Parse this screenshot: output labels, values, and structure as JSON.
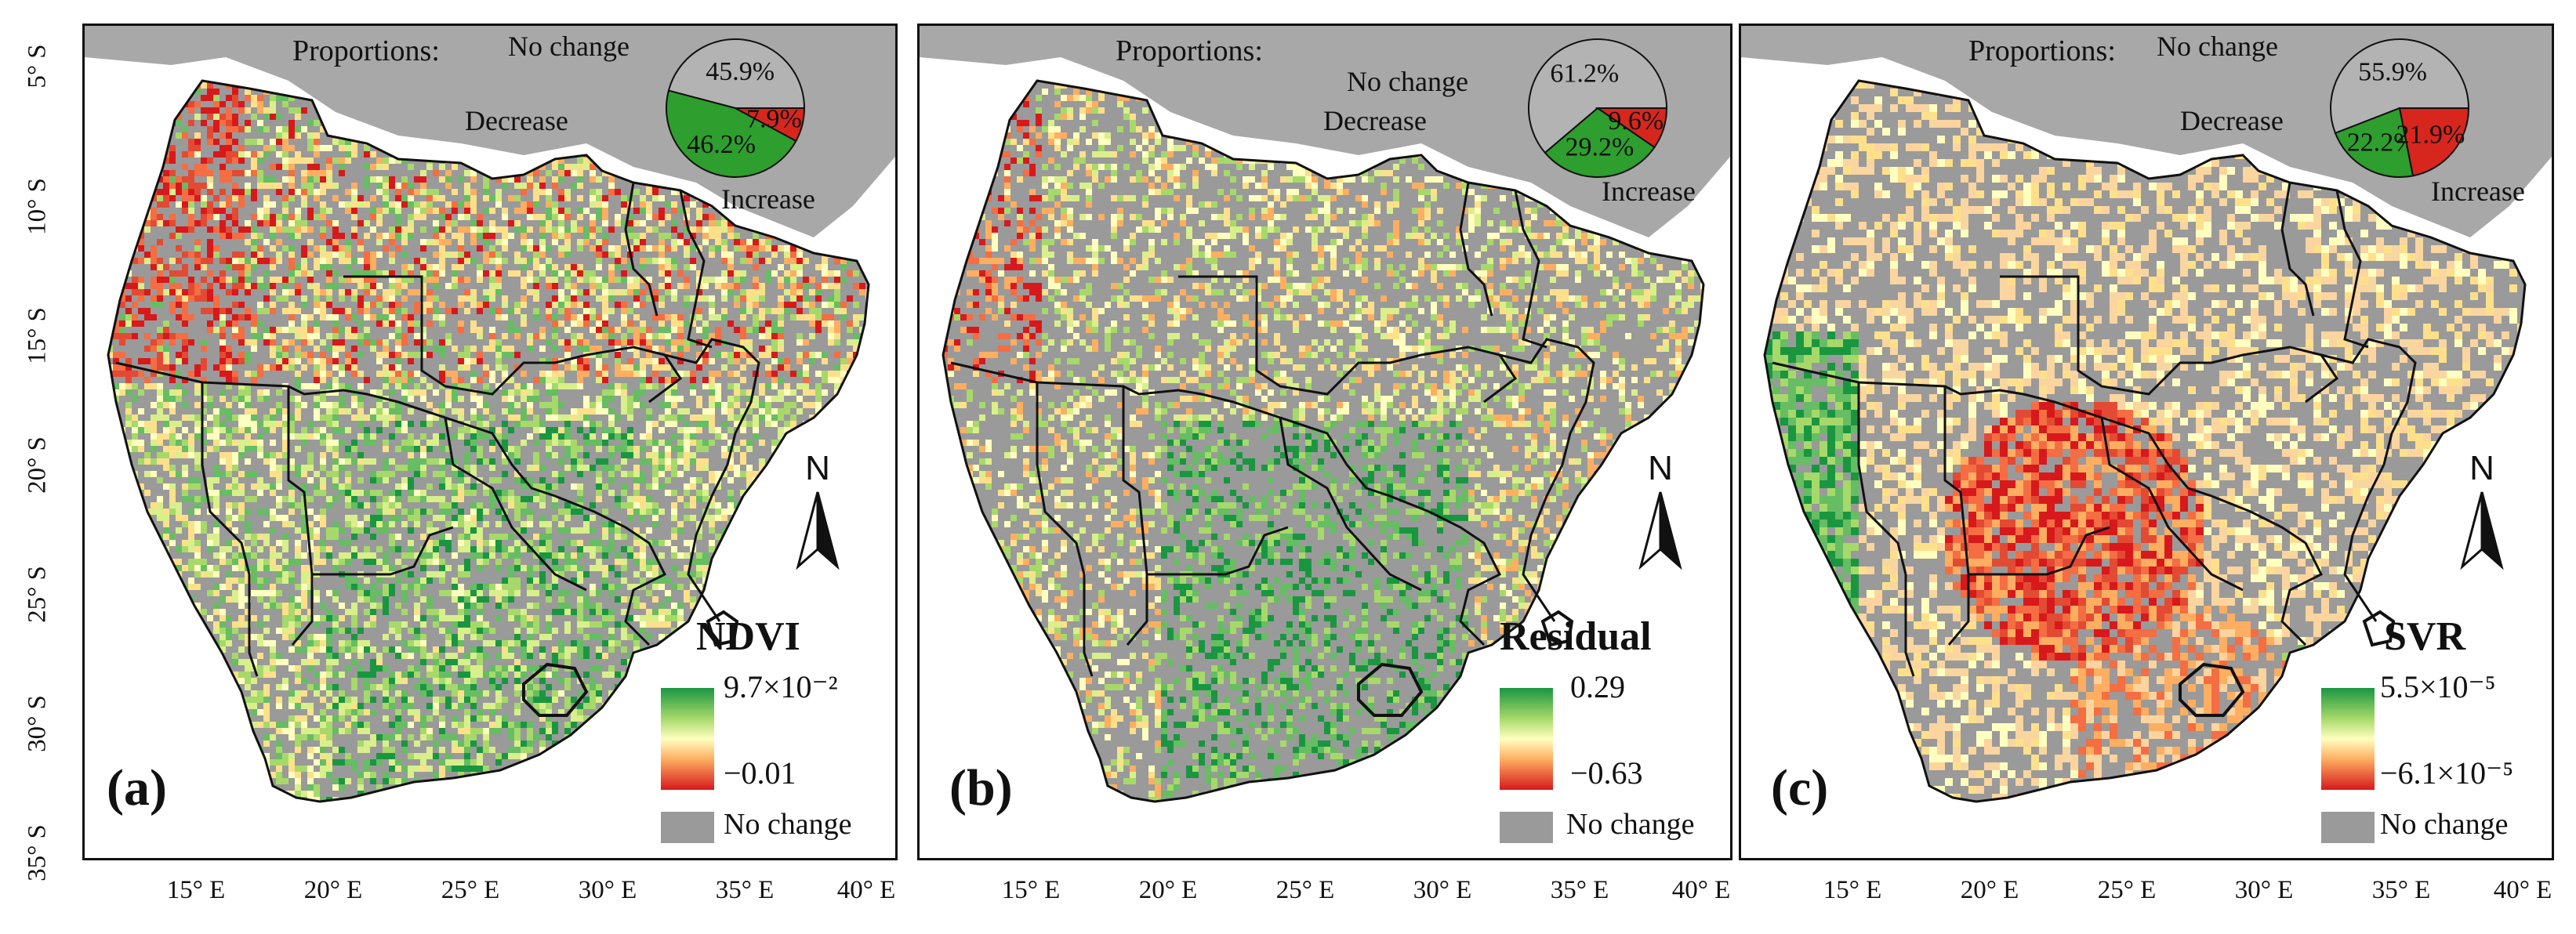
{
  "colors": {
    "land_nochange": "#9a9a9a",
    "sea_land_outside": "#a8a8a8",
    "increase": "#2e9e2e",
    "decrease": "#d7261e",
    "nochange_pie": "#b3b3b3",
    "border": "#111111"
  },
  "axes": {
    "lat_labels": [
      "5° S",
      "10° S",
      "15° S",
      "20° S",
      "25° S",
      "30° S",
      "35° S"
    ],
    "lon_labels": [
      "15° E",
      "20° E",
      "25° E",
      "30° E",
      "35° E",
      "40° E"
    ]
  },
  "common": {
    "proportions_label": "Proportions:",
    "no_change": "No change",
    "decrease": "Decrease",
    "increase": "Increase",
    "legend_nochange": "No change",
    "north": "N"
  },
  "panels": [
    {
      "letter": "(a)",
      "legend_title": "NDVI",
      "legend_max": "9.7×10⁻²",
      "legend_min": "−0.01",
      "pie": {
        "no_change": 45.9,
        "decrease": 7.9,
        "increase": 46.2,
        "no_change_label": "45.9%",
        "decrease_label": "7.9%",
        "increase_label": "46.2%"
      }
    },
    {
      "letter": "(b)",
      "legend_title": "Residual",
      "legend_max": "0.29",
      "legend_min": "−0.63",
      "pie": {
        "no_change": 61.2,
        "decrease": 9.6,
        "increase": 29.2,
        "no_change_label": "61.2%",
        "decrease_label": "9.6%",
        "increase_label": "29.2%"
      }
    },
    {
      "letter": "(c)",
      "legend_title": "SVR",
      "legend_max": "5.5×10⁻⁵",
      "legend_min": "−6.1×10⁻⁵",
      "pie": {
        "no_change": 55.9,
        "decrease": 21.9,
        "increase": 22.2,
        "no_change_label": "55.9%",
        "decrease_label": "21.9%",
        "increase_label": "22.2%"
      }
    }
  ]
}
